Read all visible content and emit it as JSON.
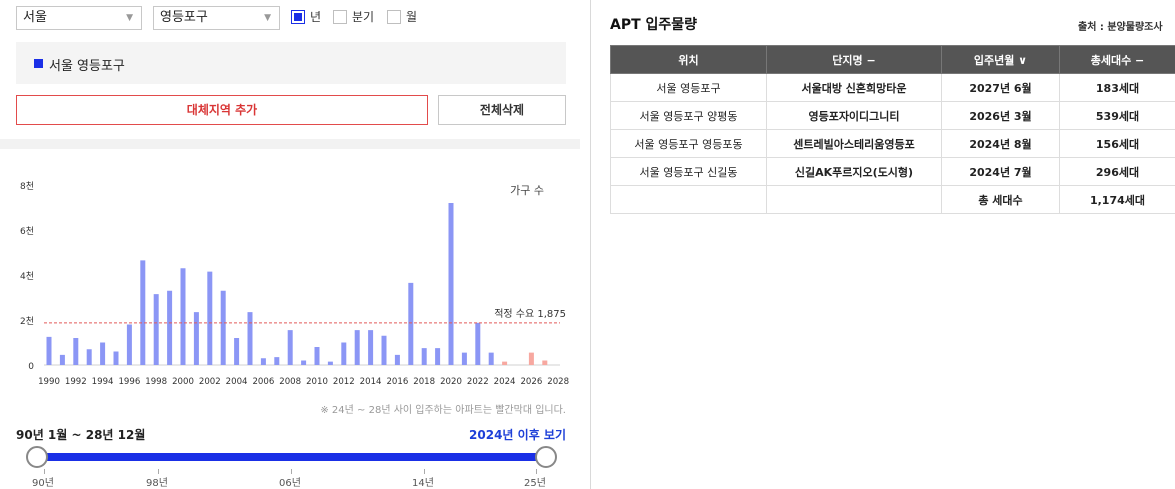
{
  "filters": {
    "city": "서울",
    "district": "영등포구",
    "periods": [
      {
        "label": "년",
        "checked": true
      },
      {
        "label": "분기",
        "checked": false
      },
      {
        "label": "월",
        "checked": false
      }
    ]
  },
  "selected_region": "서울 영등포구",
  "buttons": {
    "add_region": "대체지역 추가",
    "delete_all": "전체삭제"
  },
  "chart_data": {
    "type": "bar",
    "legend": "가구 수",
    "y_ticks": [
      "0",
      "2천",
      "4천",
      "6천",
      "8천"
    ],
    "ylim": [
      0,
      8000
    ],
    "x_tick_labels": [
      "1990",
      "1992",
      "1994",
      "1996",
      "1998",
      "2000",
      "2002",
      "2004",
      "2006",
      "2008",
      "2010",
      "2012",
      "2014",
      "2016",
      "2018",
      "2020",
      "2022",
      "2024",
      "2026",
      "2028"
    ],
    "categories": [
      1990,
      1991,
      1992,
      1993,
      1994,
      1995,
      1996,
      1997,
      1998,
      1999,
      2000,
      2001,
      2002,
      2003,
      2004,
      2005,
      2006,
      2007,
      2008,
      2009,
      2010,
      2011,
      2012,
      2013,
      2014,
      2015,
      2016,
      2017,
      2018,
      2019,
      2020,
      2021,
      2022,
      2023,
      2024,
      2025,
      2026,
      2027,
      2028
    ],
    "values": [
      1250,
      450,
      1200,
      700,
      1000,
      600,
      1800,
      4650,
      3150,
      3300,
      4300,
      2350,
      4150,
      3300,
      1200,
      2350,
      300,
      350,
      1550,
      200,
      800,
      150,
      1000,
      1550,
      1550,
      1300,
      450,
      3650,
      750,
      750,
      7200,
      550,
      1875,
      550,
      150,
      0,
      550,
      200,
      0
    ],
    "forecast_from": 2024,
    "colors": {
      "actual": "#8b96f5",
      "forecast": "#f7a8a0",
      "reference": "#e25a5a"
    },
    "reference_line": {
      "value": 1875,
      "label": "적정 수요 1,875"
    }
  },
  "chart_note": "※ 24년 ~ 28년 사이 입주하는 아파트는 빨간막대 입니다.",
  "range": {
    "label": "90년 1월 ~ 28년 12월",
    "after_link": "2024년 이후 보기",
    "ticks": [
      "90년",
      "98년",
      "06년",
      "14년",
      "25년"
    ]
  },
  "apt": {
    "title": "APT 입주물량",
    "source": "출처 : 분양물량조사",
    "headers": [
      "위치",
      "단지명 −",
      "입주년월 ∨",
      "총세대수 −"
    ],
    "rows": [
      [
        "서울 영등포구",
        "서울대방 신혼희망타운",
        "2027년 6월",
        "183세대"
      ],
      [
        "서울 영등포구 양평동",
        "영등포자이디그니티",
        "2026년 3월",
        "539세대"
      ],
      [
        "서울 영등포구 영등포동",
        "센트레빌아스테리움영등포",
        "2024년 8월",
        "156세대"
      ],
      [
        "서울 영등포구 신길동",
        "신길AK푸르지오(도시형)",
        "2024년 7월",
        "296세대"
      ]
    ],
    "total_label": "총 세대수",
    "total_value": "1,174세대"
  }
}
